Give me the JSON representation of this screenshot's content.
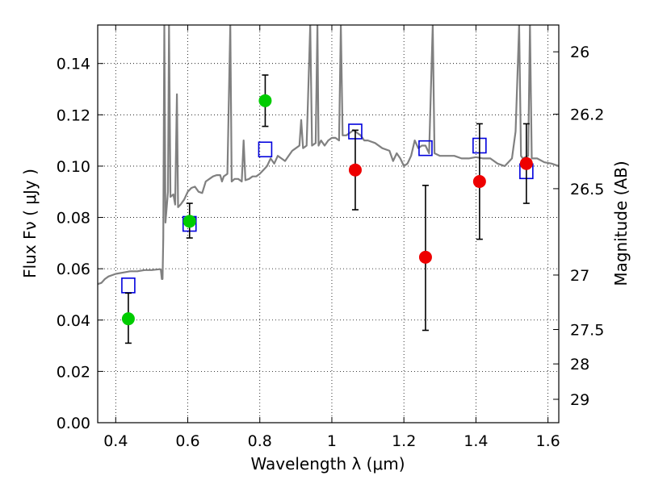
{
  "chart_data": {
    "type": "scatter",
    "xlabel": "Wavelength  λ (μm)",
    "ylabel": "Flux  Fν  ( μJy )",
    "ylabel_right": "Magnitude (AB)",
    "xlim": [
      0.35,
      1.63
    ],
    "ylim": [
      0.0,
      0.155
    ],
    "grid": true,
    "x_ticks": [
      {
        "value": 0.4,
        "label": "0.4"
      },
      {
        "value": 0.6,
        "label": "0.6"
      },
      {
        "value": 0.8,
        "label": "0.8"
      },
      {
        "value": 1.0,
        "label": "1"
      },
      {
        "value": 1.2,
        "label": "1.2"
      },
      {
        "value": 1.4,
        "label": "1.4"
      },
      {
        "value": 1.6,
        "label": "1.6"
      }
    ],
    "y_ticks": [
      {
        "value": 0.0,
        "label": "0.00"
      },
      {
        "value": 0.02,
        "label": "0.02"
      },
      {
        "value": 0.04,
        "label": "0.04"
      },
      {
        "value": 0.06,
        "label": "0.06"
      },
      {
        "value": 0.08,
        "label": "0.08"
      },
      {
        "value": 0.1,
        "label": "0.10"
      },
      {
        "value": 0.12,
        "label": "0.12"
      },
      {
        "value": 0.14,
        "label": "0.14"
      }
    ],
    "right_ticks": [
      {
        "mag": 26,
        "label": "26"
      },
      {
        "mag": 26.2,
        "label": "26.2"
      },
      {
        "mag": 26.5,
        "label": "26.5"
      },
      {
        "mag": 27,
        "label": "27"
      },
      {
        "mag": 27.5,
        "label": "27.5"
      },
      {
        "mag": 28,
        "label": "28"
      },
      {
        "mag": 29,
        "label": "29"
      }
    ],
    "series": [
      {
        "kind": "line",
        "color": "#808080",
        "points": [
          [
            0.35,
            0.054
          ],
          [
            0.36,
            0.0545
          ],
          [
            0.37,
            0.056
          ],
          [
            0.38,
            0.057
          ],
          [
            0.39,
            0.0575
          ],
          [
            0.4,
            0.058
          ],
          [
            0.42,
            0.0585
          ],
          [
            0.44,
            0.059
          ],
          [
            0.46,
            0.059
          ],
          [
            0.48,
            0.0595
          ],
          [
            0.5,
            0.0595
          ],
          [
            0.52,
            0.0598
          ],
          [
            0.525,
            0.0598
          ],
          [
            0.528,
            0.056
          ],
          [
            0.53,
            0.056
          ],
          [
            0.532,
            0.072
          ],
          [
            0.535,
            0.155
          ],
          [
            0.538,
            0.078
          ],
          [
            0.545,
            0.09
          ],
          [
            0.548,
            0.155
          ],
          [
            0.552,
            0.088
          ],
          [
            0.56,
            0.089
          ],
          [
            0.565,
            0.085
          ],
          [
            0.57,
            0.128
          ],
          [
            0.573,
            0.084
          ],
          [
            0.58,
            0.085
          ],
          [
            0.59,
            0.087
          ],
          [
            0.6,
            0.09
          ],
          [
            0.61,
            0.0915
          ],
          [
            0.62,
            0.092
          ],
          [
            0.63,
            0.09
          ],
          [
            0.64,
            0.0895
          ],
          [
            0.65,
            0.094
          ],
          [
            0.66,
            0.095
          ],
          [
            0.67,
            0.096
          ],
          [
            0.68,
            0.0965
          ],
          [
            0.69,
            0.0965
          ],
          [
            0.695,
            0.094
          ],
          [
            0.7,
            0.096
          ],
          [
            0.71,
            0.097
          ],
          [
            0.718,
            0.155
          ],
          [
            0.722,
            0.094
          ],
          [
            0.73,
            0.095
          ],
          [
            0.74,
            0.095
          ],
          [
            0.75,
            0.094
          ],
          [
            0.755,
            0.11
          ],
          [
            0.76,
            0.0945
          ],
          [
            0.77,
            0.095
          ],
          [
            0.78,
            0.096
          ],
          [
            0.79,
            0.096
          ],
          [
            0.8,
            0.097
          ],
          [
            0.81,
            0.0985
          ],
          [
            0.82,
            0.1
          ],
          [
            0.83,
            0.103
          ],
          [
            0.84,
            0.101
          ],
          [
            0.85,
            0.104
          ],
          [
            0.86,
            0.103
          ],
          [
            0.87,
            0.102
          ],
          [
            0.88,
            0.104
          ],
          [
            0.89,
            0.106
          ],
          [
            0.9,
            0.107
          ],
          [
            0.91,
            0.108
          ],
          [
            0.915,
            0.118
          ],
          [
            0.92,
            0.107
          ],
          [
            0.93,
            0.108
          ],
          [
            0.94,
            0.155
          ],
          [
            0.945,
            0.108
          ],
          [
            0.955,
            0.109
          ],
          [
            0.96,
            0.155
          ],
          [
            0.963,
            0.108
          ],
          [
            0.97,
            0.11
          ],
          [
            0.98,
            0.108
          ],
          [
            0.99,
            0.11
          ],
          [
            1.0,
            0.111
          ],
          [
            1.01,
            0.111
          ],
          [
            1.02,
            0.11
          ],
          [
            1.025,
            0.155
          ],
          [
            1.03,
            0.112
          ],
          [
            1.04,
            0.112
          ],
          [
            1.05,
            0.113
          ],
          [
            1.06,
            0.114
          ],
          [
            1.07,
            0.113
          ],
          [
            1.08,
            0.112
          ],
          [
            1.09,
            0.11
          ],
          [
            1.1,
            0.11
          ],
          [
            1.12,
            0.109
          ],
          [
            1.14,
            0.107
          ],
          [
            1.16,
            0.106
          ],
          [
            1.17,
            0.102
          ],
          [
            1.18,
            0.105
          ],
          [
            1.19,
            0.103
          ],
          [
            1.2,
            0.1
          ],
          [
            1.21,
            0.101
          ],
          [
            1.22,
            0.104
          ],
          [
            1.23,
            0.11
          ],
          [
            1.24,
            0.107
          ],
          [
            1.25,
            0.108
          ],
          [
            1.26,
            0.108
          ],
          [
            1.27,
            0.105
          ],
          [
            1.28,
            0.155
          ],
          [
            1.285,
            0.105
          ],
          [
            1.3,
            0.104
          ],
          [
            1.32,
            0.104
          ],
          [
            1.34,
            0.104
          ],
          [
            1.36,
            0.103
          ],
          [
            1.38,
            0.103
          ],
          [
            1.4,
            0.1035
          ],
          [
            1.42,
            0.103
          ],
          [
            1.44,
            0.103
          ],
          [
            1.46,
            0.101
          ],
          [
            1.48,
            0.1
          ],
          [
            1.5,
            0.103
          ],
          [
            1.51,
            0.1135
          ],
          [
            1.52,
            0.155
          ],
          [
            1.525,
            0.104
          ],
          [
            1.53,
            0.103
          ],
          [
            1.545,
            0.104
          ],
          [
            1.55,
            0.155
          ],
          [
            1.555,
            0.103
          ],
          [
            1.57,
            0.103
          ],
          [
            1.59,
            0.1015
          ],
          [
            1.61,
            0.101
          ],
          [
            1.63,
            0.1
          ]
        ]
      },
      {
        "kind": "square",
        "color": "#0000dd",
        "points": [
          [
            0.435,
            0.0535
          ],
          [
            0.605,
            0.0775
          ],
          [
            0.815,
            0.1065
          ],
          [
            1.065,
            0.1135
          ],
          [
            1.26,
            0.107
          ],
          [
            1.41,
            0.108
          ],
          [
            1.54,
            0.098
          ]
        ]
      },
      {
        "kind": "circle",
        "color": "#00cc00",
        "points": [
          {
            "x": 0.435,
            "y": 0.0405,
            "err": [
              0.031,
              0.0505
            ]
          },
          {
            "x": 0.605,
            "y": 0.0785,
            "err": [
              0.072,
              0.0855
            ]
          },
          {
            "x": 0.815,
            "y": 0.1255,
            "err": [
              0.1155,
              0.1355
            ]
          }
        ]
      },
      {
        "kind": "circle",
        "color": "#ee0000",
        "points": [
          {
            "x": 1.065,
            "y": 0.0985,
            "err": [
              0.083,
              0.114
            ]
          },
          {
            "x": 1.26,
            "y": 0.0645,
            "err": [
              0.036,
              0.0925
            ]
          },
          {
            "x": 1.41,
            "y": 0.094,
            "err": [
              0.0715,
              0.1165
            ]
          },
          {
            "x": 1.54,
            "y": 0.101,
            "err": [
              0.0855,
              0.1165
            ]
          }
        ]
      }
    ]
  }
}
